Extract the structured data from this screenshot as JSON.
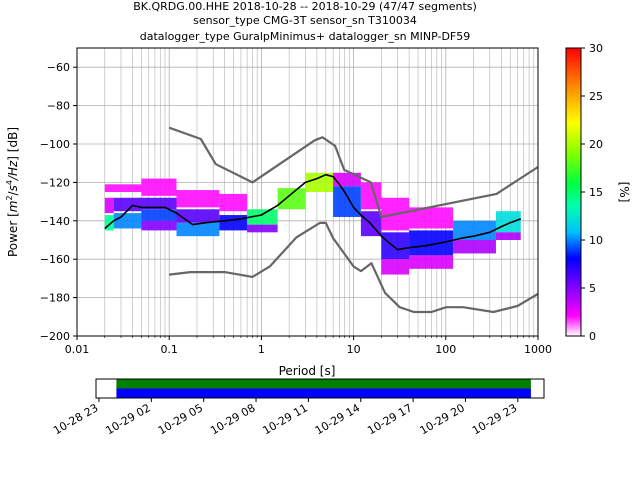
{
  "chart_data": [
    {
      "type": "heatmap",
      "title_lines": [
        "BK.QRDG.00.HHE   2018-10-28 -- 2018-10-29  (47/47 segments)",
        "sensor_type CMG-3T sensor_sn T310034",
        "datalogger_type GuralpMinimus+ datalogger_sn MINP-DF59"
      ],
      "xlabel": "Period [s]",
      "ylabel_parts": [
        "Power [",
        "m",
        "2",
        "/",
        "s",
        "4",
        "/Hz",
        "] [dB]"
      ],
      "x_scale": "log",
      "xlim": [
        0.01,
        1000
      ],
      "ylim": [
        -200,
        -50
      ],
      "grid": true,
      "x_ticks": [
        {
          "value": 0.01,
          "label": "0.01"
        },
        {
          "value": 0.1,
          "label": "0.1"
        },
        {
          "value": 1,
          "label": "1"
        },
        {
          "value": 10,
          "label": "10"
        },
        {
          "value": 100,
          "label": "100"
        },
        {
          "value": 1000,
          "label": "1000"
        }
      ],
      "y_ticks": [
        {
          "value": -60,
          "label": "−60"
        },
        {
          "value": -80,
          "label": "−80"
        },
        {
          "value": -100,
          "label": "−100"
        },
        {
          "value": -120,
          "label": "−120"
        },
        {
          "value": -140,
          "label": "−140"
        },
        {
          "value": -160,
          "label": "−160"
        },
        {
          "value": -180,
          "label": "−180"
        },
        {
          "value": -200,
          "label": "−200"
        }
      ],
      "colorbar": {
        "label": "[%]",
        "range": [
          0,
          30
        ],
        "ticks": [
          {
            "value": 0,
            "label": "0"
          },
          {
            "value": 5,
            "label": "5"
          },
          {
            "value": 10,
            "label": "10"
          },
          {
            "value": 15,
            "label": "15"
          },
          {
            "value": 20,
            "label": "20"
          },
          {
            "value": 25,
            "label": "25"
          },
          {
            "value": 30,
            "label": "30"
          }
        ]
      },
      "nhnm": {
        "x": [
          0.1,
          0.22,
          0.32,
          0.8,
          3.8,
          4.6,
          6.3,
          7.9,
          15.4,
          20,
          354.8,
          1000
        ],
        "y": [
          -91.5,
          -97.4,
          -110.5,
          -120,
          -98,
          -96.5,
          -101,
          -113.5,
          -120,
          -138,
          -126,
          -112
        ]
      },
      "nlnm": {
        "x": [
          0.1,
          0.17,
          0.4,
          0.8,
          1.24,
          2.4,
          4.3,
          5,
          6,
          10,
          12,
          15.6,
          21.9,
          31.6,
          45,
          70,
          101,
          154,
          328,
          600,
          1000
        ],
        "y": [
          -168,
          -166.7,
          -166.7,
          -169.2,
          -163.7,
          -148.6,
          -141.1,
          -141.1,
          -149,
          -163.8,
          -166.2,
          -162.1,
          -177.5,
          -185,
          -187.5,
          -187.5,
          -185,
          -185,
          -187.5,
          -184.4,
          -178
        ]
      },
      "mode": {
        "x": [
          0.02,
          0.025,
          0.03,
          0.04,
          0.05,
          0.07,
          0.09,
          0.12,
          0.18,
          0.25,
          0.4,
          0.6,
          1,
          1.5,
          2,
          3,
          4,
          5,
          6,
          7,
          8,
          10,
          12,
          15,
          20,
          25,
          30,
          40,
          60,
          100,
          150,
          200,
          300,
          400,
          500,
          650
        ],
        "y": [
          -144,
          -140,
          -138,
          -132,
          -133,
          -133,
          -133,
          -136,
          -142,
          -141,
          -140,
          -139,
          -137,
          -132,
          -127,
          -120,
          -118,
          -116,
          -117,
          -121,
          -125,
          -133,
          -137,
          -141,
          -148,
          -152,
          -155,
          -154,
          -153,
          -151,
          -149,
          -148,
          -146,
          -143,
          -141,
          -139
        ]
      },
      "density": [
        {
          "x": [
            0.02,
            0.025
          ],
          "y": [
            -137,
            -145
          ],
          "pct": 14
        },
        {
          "x": [
            0.02,
            0.025
          ],
          "y": [
            -128,
            -136
          ],
          "pct": 3
        },
        {
          "x": [
            0.025,
            0.05
          ],
          "y": [
            -136,
            -144
          ],
          "pct": 10
        },
        {
          "x": [
            0.025,
            0.05
          ],
          "y": [
            -128,
            -135
          ],
          "pct": 6
        },
        {
          "x": [
            0.02,
            0.05
          ],
          "y": [
            -121,
            -125
          ],
          "pct": 2
        },
        {
          "x": [
            0.05,
            0.12
          ],
          "y": [
            -128,
            -134
          ],
          "pct": 6
        },
        {
          "x": [
            0.05,
            0.12
          ],
          "y": [
            -134,
            -140
          ],
          "pct": 9
        },
        {
          "x": [
            0.05,
            0.12
          ],
          "y": [
            -140,
            -145
          ],
          "pct": 5
        },
        {
          "x": [
            0.05,
            0.12
          ],
          "y": [
            -118,
            -127
          ],
          "pct": 2
        },
        {
          "x": [
            0.12,
            0.35
          ],
          "y": [
            -134,
            -141
          ],
          "pct": 6
        },
        {
          "x": [
            0.12,
            0.35
          ],
          "y": [
            -141,
            -148
          ],
          "pct": 10
        },
        {
          "x": [
            0.12,
            0.35
          ],
          "y": [
            -124,
            -133
          ],
          "pct": 2
        },
        {
          "x": [
            0.35,
            0.7
          ],
          "y": [
            -137,
            -145
          ],
          "pct": 8
        },
        {
          "x": [
            0.35,
            0.7
          ],
          "y": [
            -126,
            -135
          ],
          "pct": 2
        },
        {
          "x": [
            0.7,
            1.5
          ],
          "y": [
            -134,
            -142
          ],
          "pct": 15
        },
        {
          "x": [
            0.7,
            1.5
          ],
          "y": [
            -142,
            -146
          ],
          "pct": 5
        },
        {
          "x": [
            1.5,
            3
          ],
          "y": [
            -123,
            -134
          ],
          "pct": 18
        },
        {
          "x": [
            3,
            6
          ],
          "y": [
            -115,
            -125
          ],
          "pct": 20
        },
        {
          "x": [
            6,
            12
          ],
          "y": [
            -122,
            -138
          ],
          "pct": 9
        },
        {
          "x": [
            6,
            12
          ],
          "y": [
            -115,
            -122
          ],
          "pct": 3
        },
        {
          "x": [
            12,
            20
          ],
          "y": [
            -135,
            -148
          ],
          "pct": 6
        },
        {
          "x": [
            12,
            20
          ],
          "y": [
            -120,
            -134
          ],
          "pct": 2
        },
        {
          "x": [
            20,
            40
          ],
          "y": [
            -146,
            -160
          ],
          "pct": 7
        },
        {
          "x": [
            20,
            40
          ],
          "y": [
            -160,
            -168
          ],
          "pct": 3
        },
        {
          "x": [
            20,
            40
          ],
          "y": [
            -128,
            -145
          ],
          "pct": 2
        },
        {
          "x": [
            40,
            120
          ],
          "y": [
            -145,
            -158
          ],
          "pct": 8
        },
        {
          "x": [
            40,
            120
          ],
          "y": [
            -158,
            -165
          ],
          "pct": 3
        },
        {
          "x": [
            40,
            120
          ],
          "y": [
            -133,
            -144
          ],
          "pct": 2
        },
        {
          "x": [
            120,
            350
          ],
          "y": [
            -140,
            -150
          ],
          "pct": 10
        },
        {
          "x": [
            120,
            350
          ],
          "y": [
            -150,
            -157
          ],
          "pct": 4
        },
        {
          "x": [
            350,
            650
          ],
          "y": [
            -135,
            -146
          ],
          "pct": 12
        },
        {
          "x": [
            350,
            650
          ],
          "y": [
            -146,
            -150
          ],
          "pct": 4
        }
      ]
    },
    {
      "type": "timeline",
      "tick_labels": [
        "10-28 23",
        "10-29 02",
        "10-29 05",
        "10-29 08",
        "10-29 11",
        "10-29 14",
        "10-29 17",
        "10-29 20",
        "10-29 23"
      ],
      "tick_hours": [
        23,
        26,
        29,
        32,
        35,
        38,
        41,
        44,
        47
      ],
      "range_hours": [
        22.83,
        48.5
      ],
      "coverage_hours": [
        24,
        47.75
      ],
      "colors": {
        "data": "#0000ff",
        "used": "#008000"
      }
    }
  ]
}
